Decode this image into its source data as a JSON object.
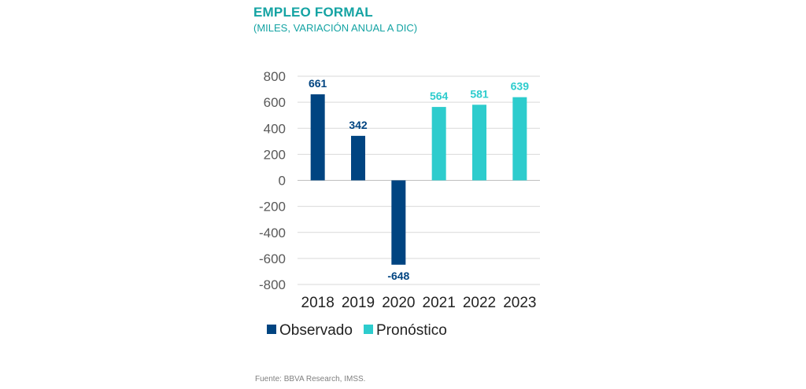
{
  "chart_data": {
    "type": "bar",
    "title": "EMPLEO FORMAL",
    "subtitle": "(MILES, VARIACIÓN ANUAL A DIC)",
    "categories": [
      "2018",
      "2019",
      "2020",
      "2021",
      "2022",
      "2023"
    ],
    "values": [
      661,
      342,
      -648,
      564,
      581,
      639
    ],
    "value_labels": [
      "661",
      "342",
      "-648",
      "564",
      "581",
      "639"
    ],
    "groups": [
      "Observado",
      "Observado",
      "Observado",
      "Pronóstico",
      "Pronóstico",
      "Pronóstico"
    ],
    "series": [
      {
        "name": "Observado",
        "color": "#004481"
      },
      {
        "name": "Pronóstico",
        "color": "#2dcccd"
      }
    ],
    "ylim": [
      -800,
      800
    ],
    "yticks": [
      800,
      600,
      400,
      200,
      0,
      -200,
      -400,
      -600,
      -800
    ],
    "ytick_labels": [
      "800",
      "600",
      "400",
      "200",
      "0",
      "-200",
      "-400",
      "-600",
      "-800"
    ],
    "xlabel": "",
    "ylabel": "",
    "grid": true,
    "legend_position": "bottom"
  },
  "source": "Fuente: BBVA Research, IMSS."
}
